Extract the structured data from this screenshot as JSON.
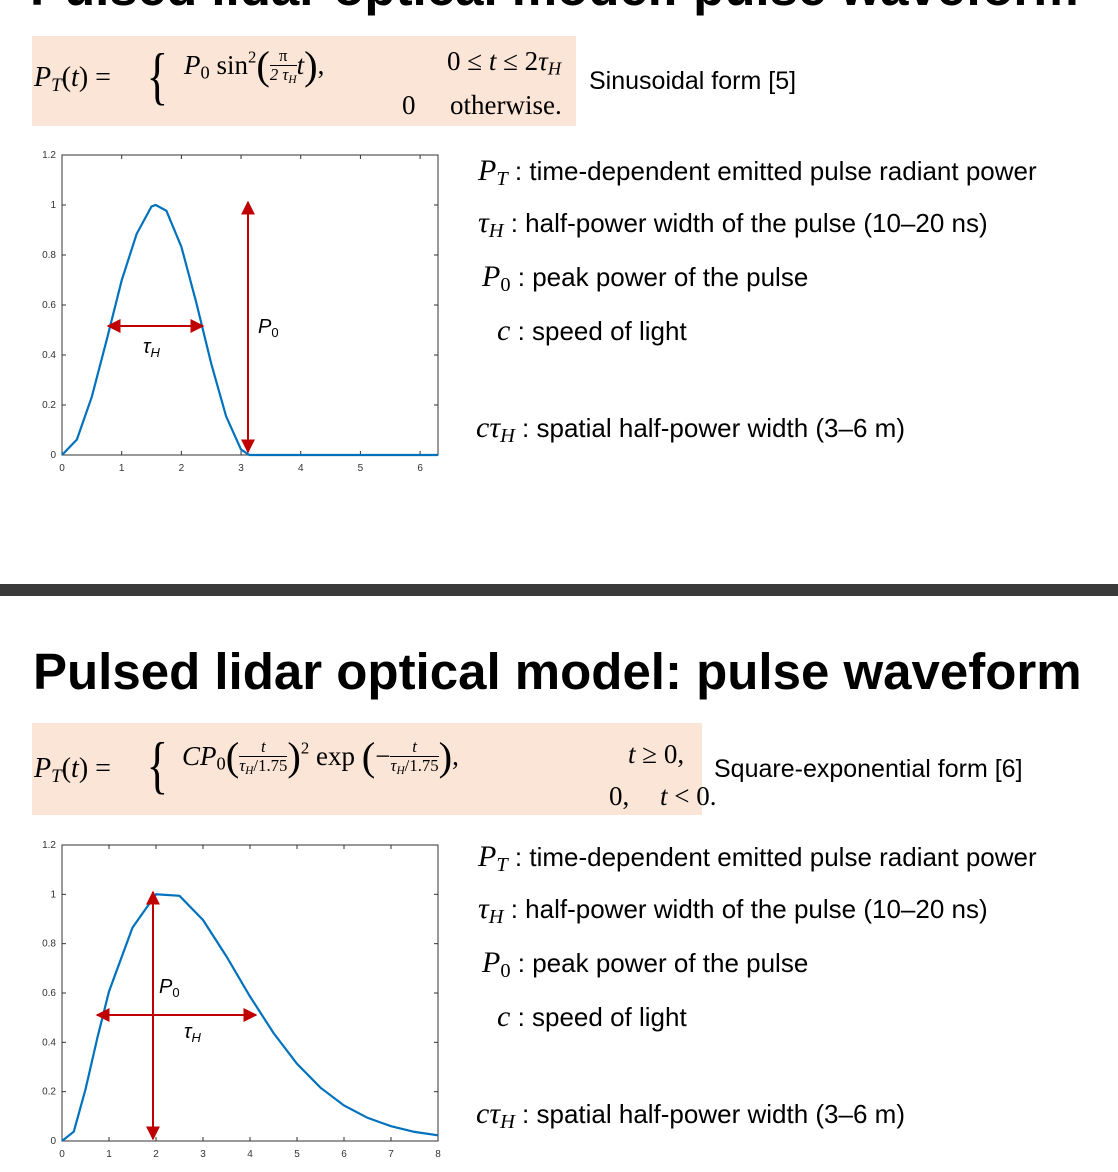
{
  "top_slide": {
    "cut_title": "Pulsed lidar optical model: pulse waveform",
    "equation": {
      "lhs": "P_T(t) =",
      "case1_expr": "P_0 sin^2(π/(2 τ_H) t),",
      "case1_cond": "0 ≤ t ≤ 2 τ_H",
      "case2_expr": "0",
      "case2_cond": "otherwise."
    },
    "form_label": "Sinusoidal form [5]",
    "definitions": [
      {
        "symbol": "P_T",
        "text": ": time-dependent emitted pulse radiant power"
      },
      {
        "symbol": "τ_H",
        "text": ": half-power width of the pulse (10–20 ns)"
      },
      {
        "symbol": "P_0",
        "text": ": peak power of the pulse"
      },
      {
        "symbol": "c",
        "text": ": speed of light"
      },
      {
        "symbol": "cτ_H",
        "text": ": spatial half-power width (3–6 m)"
      }
    ]
  },
  "bottom_slide": {
    "title": "Pulsed lidar optical model: pulse waveform",
    "equation": {
      "lhs": "P_T(t) =",
      "case1_expr": "C P_0 (t/(τ_H/1.75))^2 exp(−t/(τ_H/1.75)),",
      "case1_cond": "t ≥ 0,",
      "case2_expr": "0,",
      "case2_cond": "t < 0."
    },
    "form_label": "Square-exponential form [6]",
    "definitions": [
      {
        "symbol": "P_T",
        "text": ": time-dependent emitted pulse radiant power"
      },
      {
        "symbol": "τ_H",
        "text": ": half-power width of the pulse (10–20 ns)"
      },
      {
        "symbol": "P_0",
        "text": ": peak power of the pulse"
      },
      {
        "symbol": "c",
        "text": ": speed of light"
      },
      {
        "symbol": "cτ_H",
        "text": ": spatial half-power width (3–6 m)"
      }
    ]
  },
  "colors": {
    "curve": "#0072bd",
    "annotation": "#c00000",
    "equation_bg": "#fbe5d6",
    "divider": "#3a3a3a"
  },
  "chart_data": [
    {
      "type": "line",
      "title": "",
      "xlabel": "",
      "ylabel": "",
      "xlim": [
        0,
        6.3
      ],
      "ylim": [
        0,
        1.2
      ],
      "xticks": [
        "0",
        "1",
        "2",
        "3",
        "4",
        "5",
        "6"
      ],
      "yticks": [
        "0",
        "0.2",
        "0.4",
        "0.6",
        "0.8",
        "1",
        "1.2"
      ],
      "grid": false,
      "series": [
        {
          "x": [
            0,
            0.25,
            0.5,
            0.75,
            1,
            1.25,
            1.5,
            1.57,
            1.75,
            2,
            2.25,
            2.5,
            2.75,
            3,
            3.14,
            4,
            5,
            6,
            6.3
          ],
          "y": [
            0,
            0.062,
            0.233,
            0.462,
            0.699,
            0.884,
            0.994,
            1,
            0.977,
            0.833,
            0.609,
            0.366,
            0.155,
            0.022,
            0,
            0,
            0,
            0,
            0
          ]
        }
      ],
      "annotations": [
        {
          "label": "τ_H",
          "type": "double-arrow",
          "from": [
            0.785,
            0.5
          ],
          "to": [
            2.356,
            0.5
          ]
        },
        {
          "label": "P_0",
          "type": "double-arrow",
          "from": [
            3.14,
            0
          ],
          "to": [
            3.14,
            1
          ]
        }
      ]
    },
    {
      "type": "line",
      "title": "",
      "xlabel": "",
      "ylabel": "",
      "xlim": [
        0,
        8
      ],
      "ylim": [
        0,
        1.2
      ],
      "xticks": [
        "0",
        "1",
        "2",
        "3",
        "4",
        "5",
        "6",
        "7",
        "8"
      ],
      "yticks": [
        "0",
        "0.2",
        "0.4",
        "0.6",
        "0.8",
        "1",
        "1.2"
      ],
      "grid": false,
      "series": [
        {
          "x": [
            0,
            0.25,
            0.5,
            0.75,
            1,
            1.5,
            2,
            2.5,
            3,
            3.5,
            4,
            4.5,
            5,
            5.5,
            6,
            6.5,
            7,
            7.5,
            8
          ],
          "y": [
            0,
            0.038,
            0.209,
            0.417,
            0.606,
            0.865,
            1,
            0.994,
            0.896,
            0.748,
            0.586,
            0.438,
            0.313,
            0.216,
            0.144,
            0.094,
            0.06,
            0.037,
            0.023
          ]
        }
      ],
      "annotations": [
        {
          "label": "P_0",
          "type": "double-arrow",
          "from": [
            2,
            0
          ],
          "to": [
            2,
            1
          ]
        },
        {
          "label": "τ_H",
          "type": "double-arrow",
          "from": [
            0.85,
            0.5
          ],
          "to": [
            4.07,
            0.5
          ]
        }
      ]
    }
  ]
}
